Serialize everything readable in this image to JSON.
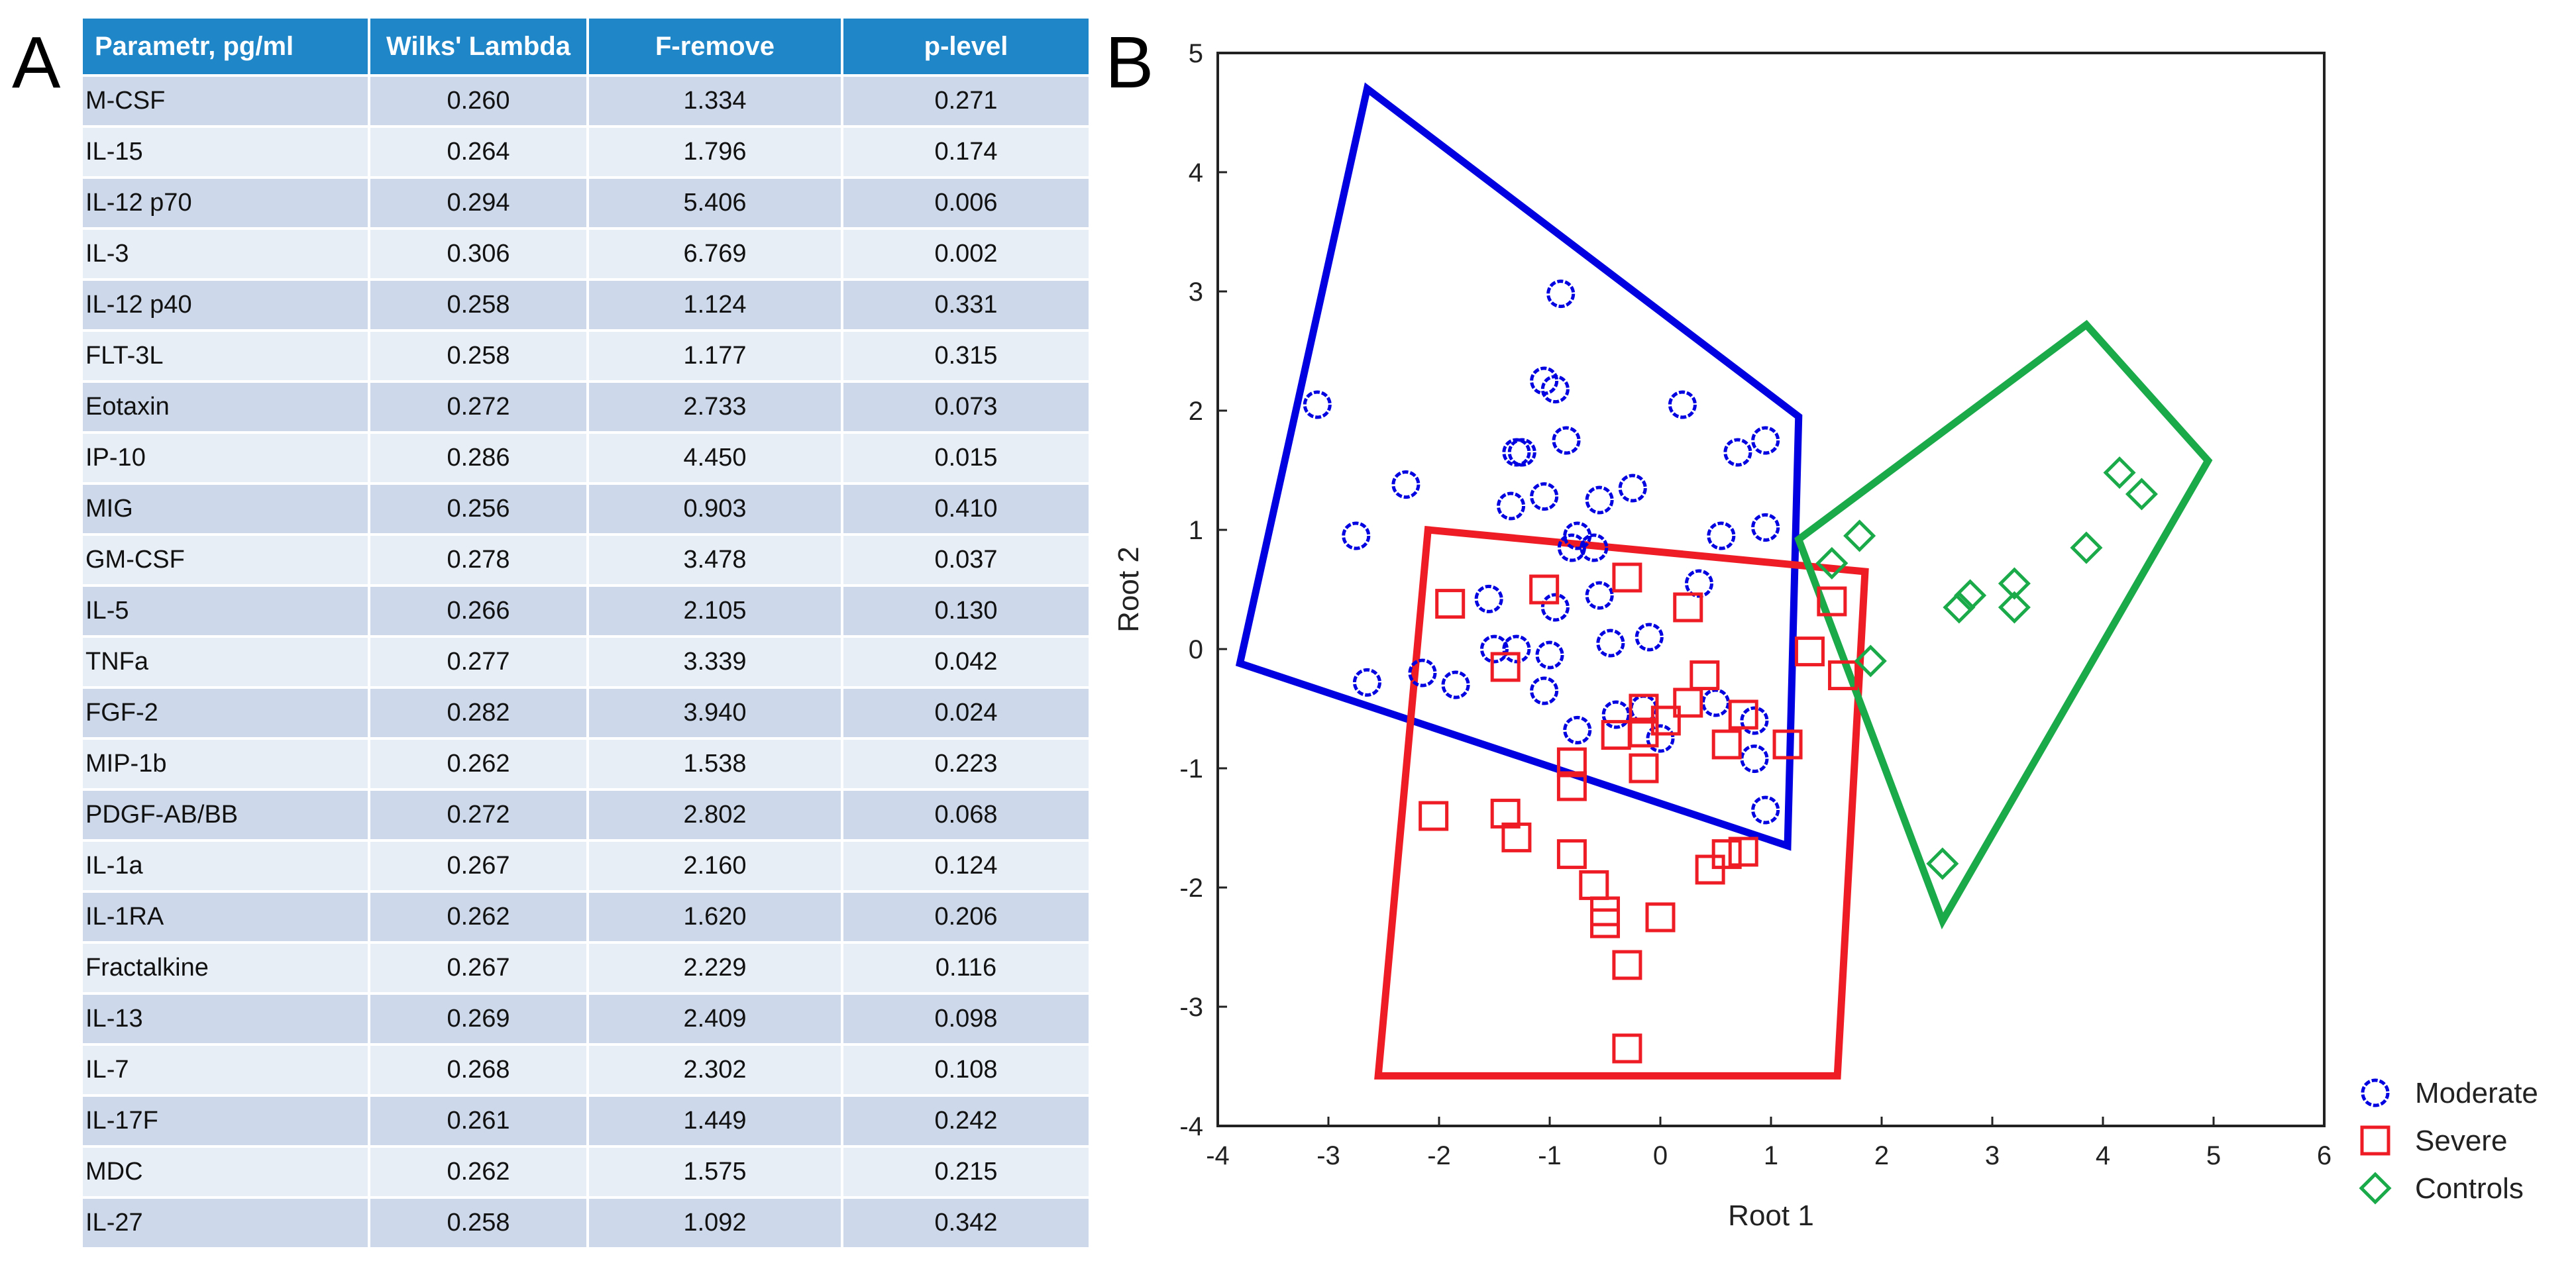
{
  "panels": {
    "a_label": "A",
    "b_label": "B"
  },
  "colors": {
    "header_bg": "#1f86c8",
    "row_odd": "#cdd9ea",
    "row_even": "#e8eef6",
    "moderate": "#0000e0",
    "severe": "#ee1c24",
    "controls": "#1aaa4a"
  },
  "table": {
    "headers": [
      "Parametr, pg/ml",
      "Wilks' Lambda",
      "F-remove",
      "p-level"
    ],
    "rows": [
      [
        "M-CSF",
        "0.260",
        "1.334",
        "0.271"
      ],
      [
        "IL-15",
        "0.264",
        "1.796",
        "0.174"
      ],
      [
        "IL-12 p70",
        "0.294",
        "5.406",
        "0.006"
      ],
      [
        "IL-3",
        "0.306",
        "6.769",
        "0.002"
      ],
      [
        "IL-12 p40",
        "0.258",
        "1.124",
        "0.331"
      ],
      [
        "FLT-3L",
        "0.258",
        "1.177",
        "0.315"
      ],
      [
        "Eotaxin",
        "0.272",
        "2.733",
        "0.073"
      ],
      [
        "IP-10",
        "0.286",
        "4.450",
        "0.015"
      ],
      [
        "MIG",
        "0.256",
        "0.903",
        "0.410"
      ],
      [
        "GM-CSF",
        "0.278",
        "3.478",
        "0.037"
      ],
      [
        "IL-5",
        "0.266",
        "2.105",
        "0.130"
      ],
      [
        "TNFa",
        "0.277",
        "3.339",
        "0.042"
      ],
      [
        "FGF-2",
        "0.282",
        "3.940",
        "0.024"
      ],
      [
        "MIP-1b",
        "0.262",
        "1.538",
        "0.223"
      ],
      [
        "PDGF-AB/BB",
        "0.272",
        "2.802",
        "0.068"
      ],
      [
        "IL-1a",
        "0.267",
        "2.160",
        "0.124"
      ],
      [
        "IL-1RA",
        "0.262",
        "1.620",
        "0.206"
      ],
      [
        "Fractalkine",
        "0.267",
        "2.229",
        "0.116"
      ],
      [
        "IL-13",
        "0.269",
        "2.409",
        "0.098"
      ],
      [
        "IL-7",
        "0.268",
        "2.302",
        "0.108"
      ],
      [
        "IL-17F",
        "0.261",
        "1.449",
        "0.242"
      ],
      [
        "MDC",
        "0.262",
        "1.575",
        "0.215"
      ],
      [
        "IL-27",
        "0.258",
        "1.092",
        "0.342"
      ]
    ]
  },
  "chart_data": {
    "type": "scatter",
    "xlabel": "Root 1",
    "ylabel": "Root 2",
    "xlim": [
      -4,
      6
    ],
    "ylim": [
      -4,
      5
    ],
    "xticks": [
      -4,
      -3,
      -2,
      -1,
      0,
      1,
      2,
      3,
      4,
      5,
      6
    ],
    "yticks": [
      -4,
      -3,
      -2,
      -1,
      0,
      1,
      2,
      3,
      4,
      5
    ],
    "grid": false,
    "legend_position": "bottom-right outside",
    "series": [
      {
        "name": "Moderate",
        "marker": "circle",
        "color": "#0000e0",
        "hull": [
          [
            -2.65,
            4.7
          ],
          [
            1.25,
            1.95
          ],
          [
            1.15,
            -1.65
          ],
          [
            -3.8,
            -0.12
          ]
        ],
        "points": [
          [
            -3.1,
            2.05
          ],
          [
            -2.3,
            1.38
          ],
          [
            -2.75,
            0.95
          ],
          [
            -2.65,
            -0.28
          ],
          [
            -2.15,
            -0.2
          ],
          [
            -1.85,
            -0.3
          ],
          [
            -1.55,
            0.42
          ],
          [
            -1.5,
            0.0
          ],
          [
            -1.3,
            0.0
          ],
          [
            -1.35,
            1.2
          ],
          [
            -1.3,
            1.65
          ],
          [
            -1.25,
            1.65
          ],
          [
            -1.05,
            2.25
          ],
          [
            -0.95,
            2.18
          ],
          [
            -0.9,
            2.98
          ],
          [
            -0.85,
            1.75
          ],
          [
            -1.05,
            1.28
          ],
          [
            -0.95,
            0.35
          ],
          [
            -0.75,
            0.95
          ],
          [
            -0.8,
            0.85
          ],
          [
            -0.55,
            1.25
          ],
          [
            -0.6,
            0.85
          ],
          [
            -0.55,
            0.45
          ],
          [
            -1.05,
            -0.35
          ],
          [
            -1.0,
            -0.05
          ],
          [
            -0.75,
            -0.68
          ],
          [
            -0.45,
            0.05
          ],
          [
            -0.25,
            1.35
          ],
          [
            -0.1,
            0.1
          ],
          [
            0.2,
            2.05
          ],
          [
            0.35,
            0.55
          ],
          [
            0.55,
            0.95
          ],
          [
            0.7,
            1.65
          ],
          [
            0.95,
            1.75
          ],
          [
            0.95,
            1.02
          ],
          [
            0.5,
            -0.45
          ],
          [
            0.85,
            -0.6
          ],
          [
            0.85,
            -0.92
          ],
          [
            0.95,
            -1.35
          ],
          [
            0.0,
            -0.75
          ],
          [
            -0.4,
            -0.55
          ],
          [
            -0.15,
            -0.5
          ]
        ]
      },
      {
        "name": "Severe",
        "marker": "square",
        "color": "#ee1c24",
        "hull": [
          [
            -2.1,
            1.0
          ],
          [
            1.85,
            0.65
          ],
          [
            1.6,
            -3.58
          ],
          [
            -2.55,
            -3.58
          ]
        ],
        "points": [
          [
            -1.9,
            0.38
          ],
          [
            -2.05,
            -1.4
          ],
          [
            -1.4,
            -0.15
          ],
          [
            -1.4,
            -1.38
          ],
          [
            -1.3,
            -1.58
          ],
          [
            -1.05,
            0.5
          ],
          [
            -0.8,
            -1.15
          ],
          [
            -0.8,
            -0.95
          ],
          [
            -0.8,
            -1.72
          ],
          [
            -0.6,
            -1.98
          ],
          [
            -0.5,
            -2.2
          ],
          [
            -0.5,
            -2.3
          ],
          [
            -0.4,
            -0.72
          ],
          [
            -0.3,
            0.6
          ],
          [
            -0.3,
            -2.65
          ],
          [
            -0.3,
            -3.35
          ],
          [
            -0.15,
            -0.5
          ],
          [
            -0.15,
            -0.7
          ],
          [
            -0.15,
            -1.0
          ],
          [
            0.0,
            -2.25
          ],
          [
            0.05,
            -0.6
          ],
          [
            0.25,
            0.35
          ],
          [
            0.25,
            -0.45
          ],
          [
            0.4,
            -0.22
          ],
          [
            0.45,
            -1.85
          ],
          [
            0.6,
            -0.8
          ],
          [
            0.6,
            -1.72
          ],
          [
            0.75,
            -1.7
          ],
          [
            0.75,
            -0.55
          ],
          [
            1.15,
            -0.8
          ],
          [
            1.35,
            -0.02
          ],
          [
            1.55,
            0.4
          ],
          [
            1.65,
            -0.22
          ]
        ]
      },
      {
        "name": "Controls",
        "marker": "diamond",
        "color": "#1aaa4a",
        "hull": [
          [
            1.25,
            0.92
          ],
          [
            3.85,
            2.72
          ],
          [
            4.95,
            1.58
          ],
          [
            2.55,
            -2.28
          ]
        ],
        "points": [
          [
            1.55,
            0.72
          ],
          [
            1.8,
            0.95
          ],
          [
            1.9,
            -0.1
          ],
          [
            2.55,
            -1.8
          ],
          [
            2.7,
            0.35
          ],
          [
            2.8,
            0.45
          ],
          [
            3.2,
            0.55
          ],
          [
            3.2,
            0.35
          ],
          [
            3.85,
            0.85
          ],
          [
            4.15,
            1.48
          ],
          [
            4.35,
            1.3
          ]
        ]
      }
    ]
  }
}
